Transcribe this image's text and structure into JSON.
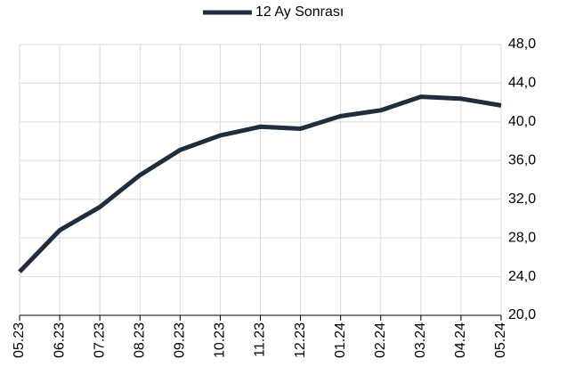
{
  "chart_data": {
    "type": "line",
    "categories": [
      "05.23",
      "06.23",
      "07.23",
      "08.23",
      "09.23",
      "10.23",
      "11.23",
      "12.23",
      "01.24",
      "02.24",
      "03.24",
      "04.24",
      "05.24"
    ],
    "series": [
      {
        "name": "12 Ay Sonrası",
        "color": "#1f2d3d",
        "values": [
          24.5,
          28.8,
          31.2,
          34.5,
          37.1,
          38.6,
          39.5,
          39.3,
          40.6,
          41.2,
          42.6,
          42.4,
          41.7
        ]
      }
    ],
    "ylim": [
      20,
      48
    ],
    "yticks": [
      {
        "value": 20,
        "label": "20,0"
      },
      {
        "value": 24,
        "label": "24,0"
      },
      {
        "value": 28,
        "label": "28,0"
      },
      {
        "value": 32,
        "label": "32,0"
      },
      {
        "value": 36,
        "label": "36,0"
      },
      {
        "value": 40,
        "label": "40,0"
      },
      {
        "value": 44,
        "label": "44,0"
      },
      {
        "value": 48,
        "label": "48,0"
      }
    ],
    "grid": true,
    "legend": "top"
  }
}
